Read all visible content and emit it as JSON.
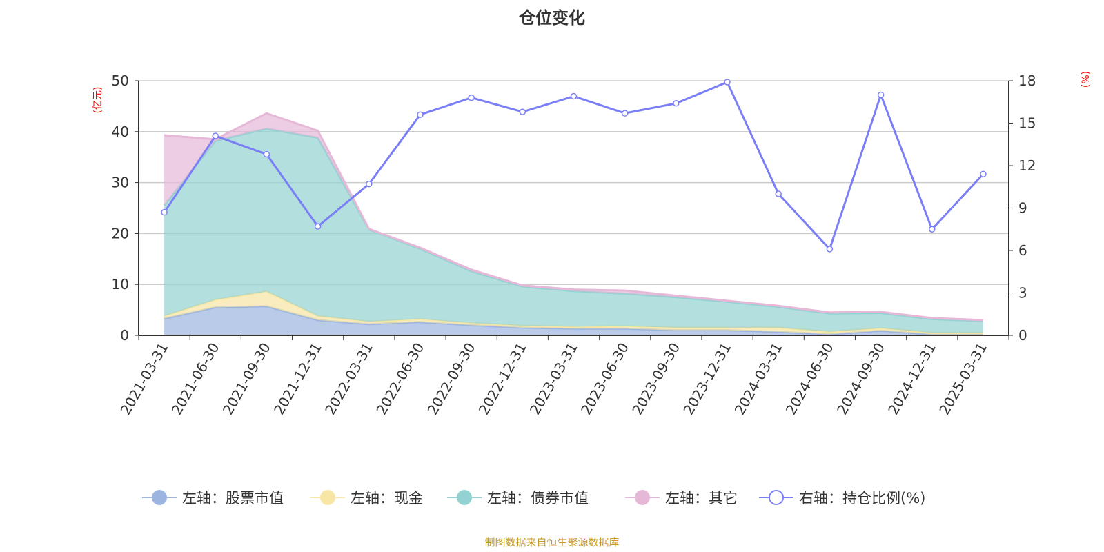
{
  "chart_data": {
    "type": "area",
    "title": "仓位变化",
    "ylabel_left": "(亿元)",
    "ylabel_right": "(%)",
    "ylim_left": [
      0,
      50
    ],
    "ylim_right": [
      0,
      18
    ],
    "yticks_left": [
      0,
      10,
      20,
      30,
      40,
      50
    ],
    "yticks_right": [
      0,
      3,
      6,
      9,
      12,
      15,
      18
    ],
    "grid": true,
    "stacked": true,
    "legend_position": "bottom",
    "categories": [
      "2021-03-31",
      "2021-06-30",
      "2021-09-30",
      "2021-12-31",
      "2022-03-31",
      "2022-06-30",
      "2022-09-30",
      "2022-12-31",
      "2023-03-31",
      "2023-06-30",
      "2023-09-30",
      "2023-12-31",
      "2024-03-31",
      "2024-06-30",
      "2024-09-30",
      "2024-12-31",
      "2025-03-31"
    ],
    "series": [
      {
        "name": "左轴：股票市值",
        "axis": "left",
        "type": "area",
        "color": "#9bb5e0",
        "values": [
          3.3,
          5.5,
          5.7,
          3.0,
          2.2,
          2.6,
          2.0,
          1.5,
          1.3,
          1.3,
          1.0,
          1.0,
          0.7,
          0.2,
          0.9,
          0.2,
          0.2
        ]
      },
      {
        "name": "左轴：现金",
        "axis": "left",
        "type": "area",
        "color": "#f7e6a4",
        "values": [
          0.5,
          1.5,
          2.9,
          0.8,
          0.5,
          0.6,
          0.4,
          0.4,
          0.4,
          0.5,
          0.5,
          0.5,
          0.8,
          0.5,
          0.5,
          0.3,
          0.3
        ]
      },
      {
        "name": "左轴：债券市值",
        "axis": "left",
        "type": "area",
        "color": "#93d2d2",
        "values": [
          21.7,
          31.2,
          32.0,
          35.0,
          18.1,
          13.8,
          10.2,
          7.7,
          7.0,
          6.4,
          6.0,
          5.1,
          4.1,
          3.6,
          3.0,
          2.7,
          2.3
        ]
      },
      {
        "name": "左轴：其它",
        "axis": "left",
        "type": "area",
        "color": "#e6b8d8",
        "values": [
          13.8,
          0.3,
          3.0,
          1.4,
          0.1,
          0.2,
          0.3,
          0.2,
          0.3,
          0.6,
          0.3,
          0.2,
          0.2,
          0.2,
          0.2,
          0.2,
          0.2
        ]
      },
      {
        "name": "右轴：持仓比例(%)",
        "axis": "right",
        "type": "line",
        "color": "#7b7ff5",
        "values": [
          8.7,
          14.1,
          12.8,
          7.7,
          10.7,
          15.6,
          16.8,
          15.8,
          16.9,
          15.7,
          16.4,
          17.9,
          10.0,
          6.1,
          17.0,
          7.5,
          11.4
        ]
      }
    ]
  },
  "footer": "制图数据来自恒生聚源数据库",
  "colors": {
    "footer": "#c89a2a",
    "axis_label": "#ff0000"
  }
}
